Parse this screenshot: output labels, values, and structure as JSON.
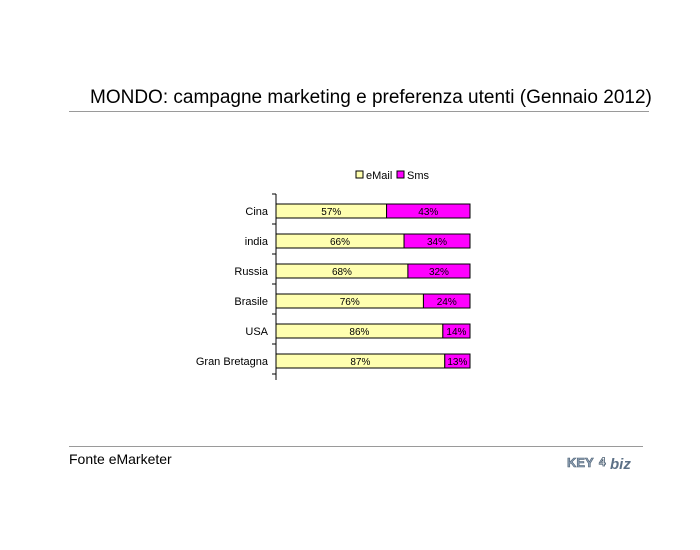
{
  "title": "MONDO: campagne marketing e preferenza utenti (Gennaio 2012)",
  "source": "Fonte eMarketer",
  "logo": {
    "part1": "KEY",
    "part2": "4",
    "part3": "biz"
  },
  "colors": {
    "email": "#ffffb0",
    "sms": "#ff00ff",
    "rule": "#9a9a9a"
  },
  "chart_data": {
    "type": "bar",
    "orientation": "horizontal",
    "stacked": "percent",
    "categories": [
      "Cina",
      "india",
      "Russia",
      "Brasile",
      "USA",
      "Gran Bretagna"
    ],
    "series": [
      {
        "name": "eMail",
        "values": [
          57,
          66,
          68,
          76,
          86,
          87
        ],
        "labels": [
          "57%",
          "66%",
          "68%",
          "76%",
          "86%",
          "87%"
        ]
      },
      {
        "name": "Sms",
        "values": [
          43,
          34,
          32,
          24,
          14,
          13
        ],
        "labels": [
          "43%",
          "34%",
          "32%",
          "24%",
          "14%",
          "13%"
        ]
      }
    ],
    "xlim": [
      0,
      100
    ],
    "grid": false,
    "legend": "top"
  }
}
